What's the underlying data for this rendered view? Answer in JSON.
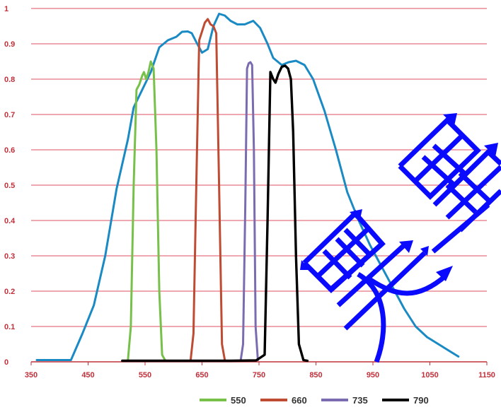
{
  "chart_data": {
    "type": "line",
    "title": "",
    "xlabel": "",
    "ylabel": "",
    "xlim": [
      350,
      1150
    ],
    "ylim": [
      0,
      1
    ],
    "x_ticks": [
      "350",
      "450",
      "550",
      "650",
      "750",
      "850",
      "950",
      "1050",
      "1150"
    ],
    "y_ticks": [
      "0",
      "0.1",
      "0.2",
      "0.3",
      "0.4",
      "0.5",
      "0.6",
      "0.7",
      "0.8",
      "0.9",
      "1"
    ],
    "grid": "horizontal",
    "legend_position": "bottom",
    "series": [
      {
        "name": "",
        "color": "#1a8ac4",
        "x": [
          360,
          385,
          410,
          420,
          440,
          460,
          480,
          500,
          520,
          530,
          545,
          560,
          575,
          590,
          605,
          615,
          625,
          632,
          640,
          650,
          660,
          670,
          680,
          690,
          700,
          712,
          725,
          740,
          752,
          765,
          775,
          790,
          802,
          815,
          830,
          845,
          865,
          885,
          905,
          925,
          945,
          965,
          985,
          1005,
          1025,
          1045,
          1065,
          1080,
          1100
        ],
        "y": [
          0.005,
          0.005,
          0.005,
          0.005,
          0.08,
          0.16,
          0.3,
          0.49,
          0.63,
          0.72,
          0.77,
          0.82,
          0.89,
          0.91,
          0.92,
          0.934,
          0.935,
          0.93,
          0.905,
          0.875,
          0.885,
          0.95,
          0.985,
          0.98,
          0.965,
          0.955,
          0.955,
          0.965,
          0.945,
          0.9,
          0.86,
          0.84,
          0.848,
          0.852,
          0.84,
          0.8,
          0.71,
          0.6,
          0.48,
          0.4,
          0.33,
          0.27,
          0.21,
          0.15,
          0.1,
          0.07,
          0.05,
          0.035,
          0.015
        ]
      },
      {
        "name": "550",
        "color": "#77c14b",
        "x": [
          520,
          525,
          530,
          535,
          540,
          545,
          548,
          552,
          556,
          560,
          565,
          570,
          575,
          580,
          585
        ],
        "y": [
          0.005,
          0.1,
          0.5,
          0.77,
          0.785,
          0.81,
          0.82,
          0.8,
          0.82,
          0.85,
          0.83,
          0.6,
          0.2,
          0.02,
          0.005
        ]
      },
      {
        "name": "660",
        "color": "#bf4b33",
        "x": [
          630,
          635,
          640,
          645,
          650,
          655,
          660,
          665,
          670,
          675,
          680,
          685,
          690
        ],
        "y": [
          0.005,
          0.08,
          0.5,
          0.91,
          0.935,
          0.96,
          0.97,
          0.955,
          0.95,
          0.93,
          0.5,
          0.05,
          0.005
        ]
      },
      {
        "name": "735",
        "color": "#7b6bb0",
        "x": [
          718,
          722,
          726,
          729,
          732,
          735,
          738,
          741,
          744,
          748
        ],
        "y": [
          0.005,
          0.05,
          0.45,
          0.83,
          0.845,
          0.848,
          0.84,
          0.6,
          0.1,
          0.005
        ]
      },
      {
        "name": "790",
        "color": "#000000",
        "x": [
          510,
          600,
          700,
          745,
          760,
          765,
          770,
          775,
          779,
          784,
          790,
          796,
          801,
          806,
          810,
          815,
          820,
          828,
          835
        ],
        "y": [
          0.003,
          0.003,
          0.003,
          0.004,
          0.02,
          0.4,
          0.82,
          0.8,
          0.79,
          0.815,
          0.835,
          0.838,
          0.83,
          0.8,
          0.65,
          0.3,
          0.05,
          0.005,
          0.003
        ]
      }
    ]
  }
}
